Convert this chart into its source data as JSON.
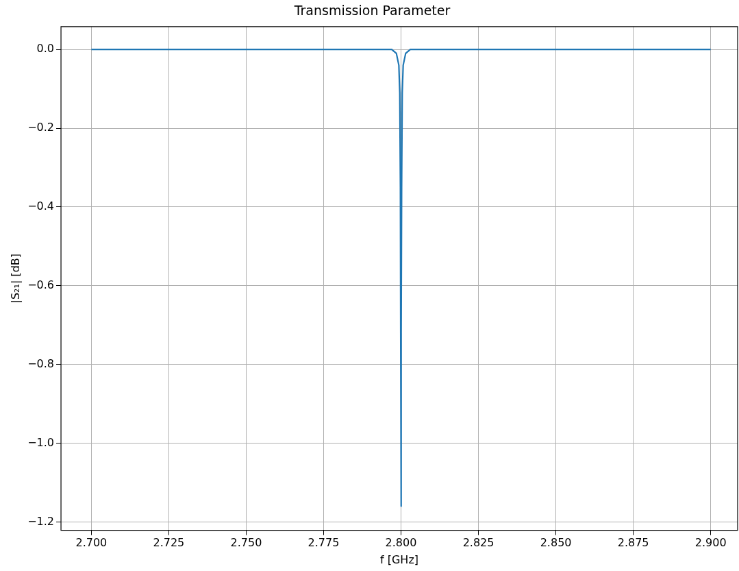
{
  "chart_data": {
    "type": "line",
    "title": "Transmission Parameter",
    "xlabel": "f [GHz]",
    "ylabel": "|S₂₁| [dB]",
    "xlim": [
      2.6902,
      2.9087
    ],
    "ylim": [
      -1.221,
      0.058
    ],
    "xticks": [
      {
        "value": 2.7,
        "label": "2.700"
      },
      {
        "value": 2.725,
        "label": "2.725"
      },
      {
        "value": 2.75,
        "label": "2.750"
      },
      {
        "value": 2.775,
        "label": "2.775"
      },
      {
        "value": 2.8,
        "label": "2.800"
      },
      {
        "value": 2.825,
        "label": "2.825"
      },
      {
        "value": 2.85,
        "label": "2.850"
      },
      {
        "value": 2.875,
        "label": "2.875"
      },
      {
        "value": 2.9,
        "label": "2.900"
      }
    ],
    "yticks": [
      {
        "value": 0,
        "label": "0.0"
      },
      {
        "value": -0.2,
        "label": "−0.2"
      },
      {
        "value": -0.4,
        "label": "−0.4"
      },
      {
        "value": -0.6,
        "label": "−0.6"
      },
      {
        "value": -0.8,
        "label": "−0.8"
      },
      {
        "value": -1.0,
        "label": "−1.0"
      },
      {
        "value": -1.2,
        "label": "−1.2"
      }
    ],
    "grid": true,
    "legend": false,
    "marker": "none",
    "line_style": "solid",
    "series": [
      {
        "color": "#1f77b4",
        "x": [
          2.7,
          2.797,
          2.7985,
          2.7993,
          2.7996,
          2.7998,
          2.7999,
          2.8,
          2.8001,
          2.8002,
          2.8004,
          2.8007,
          2.8015,
          2.803,
          2.9
        ],
        "values": [
          0,
          0,
          -0.01,
          -0.04,
          -0.11,
          -0.35,
          -0.72,
          -1.16,
          -0.72,
          -0.35,
          -0.11,
          -0.04,
          -0.01,
          0,
          0
        ]
      }
    ]
  }
}
